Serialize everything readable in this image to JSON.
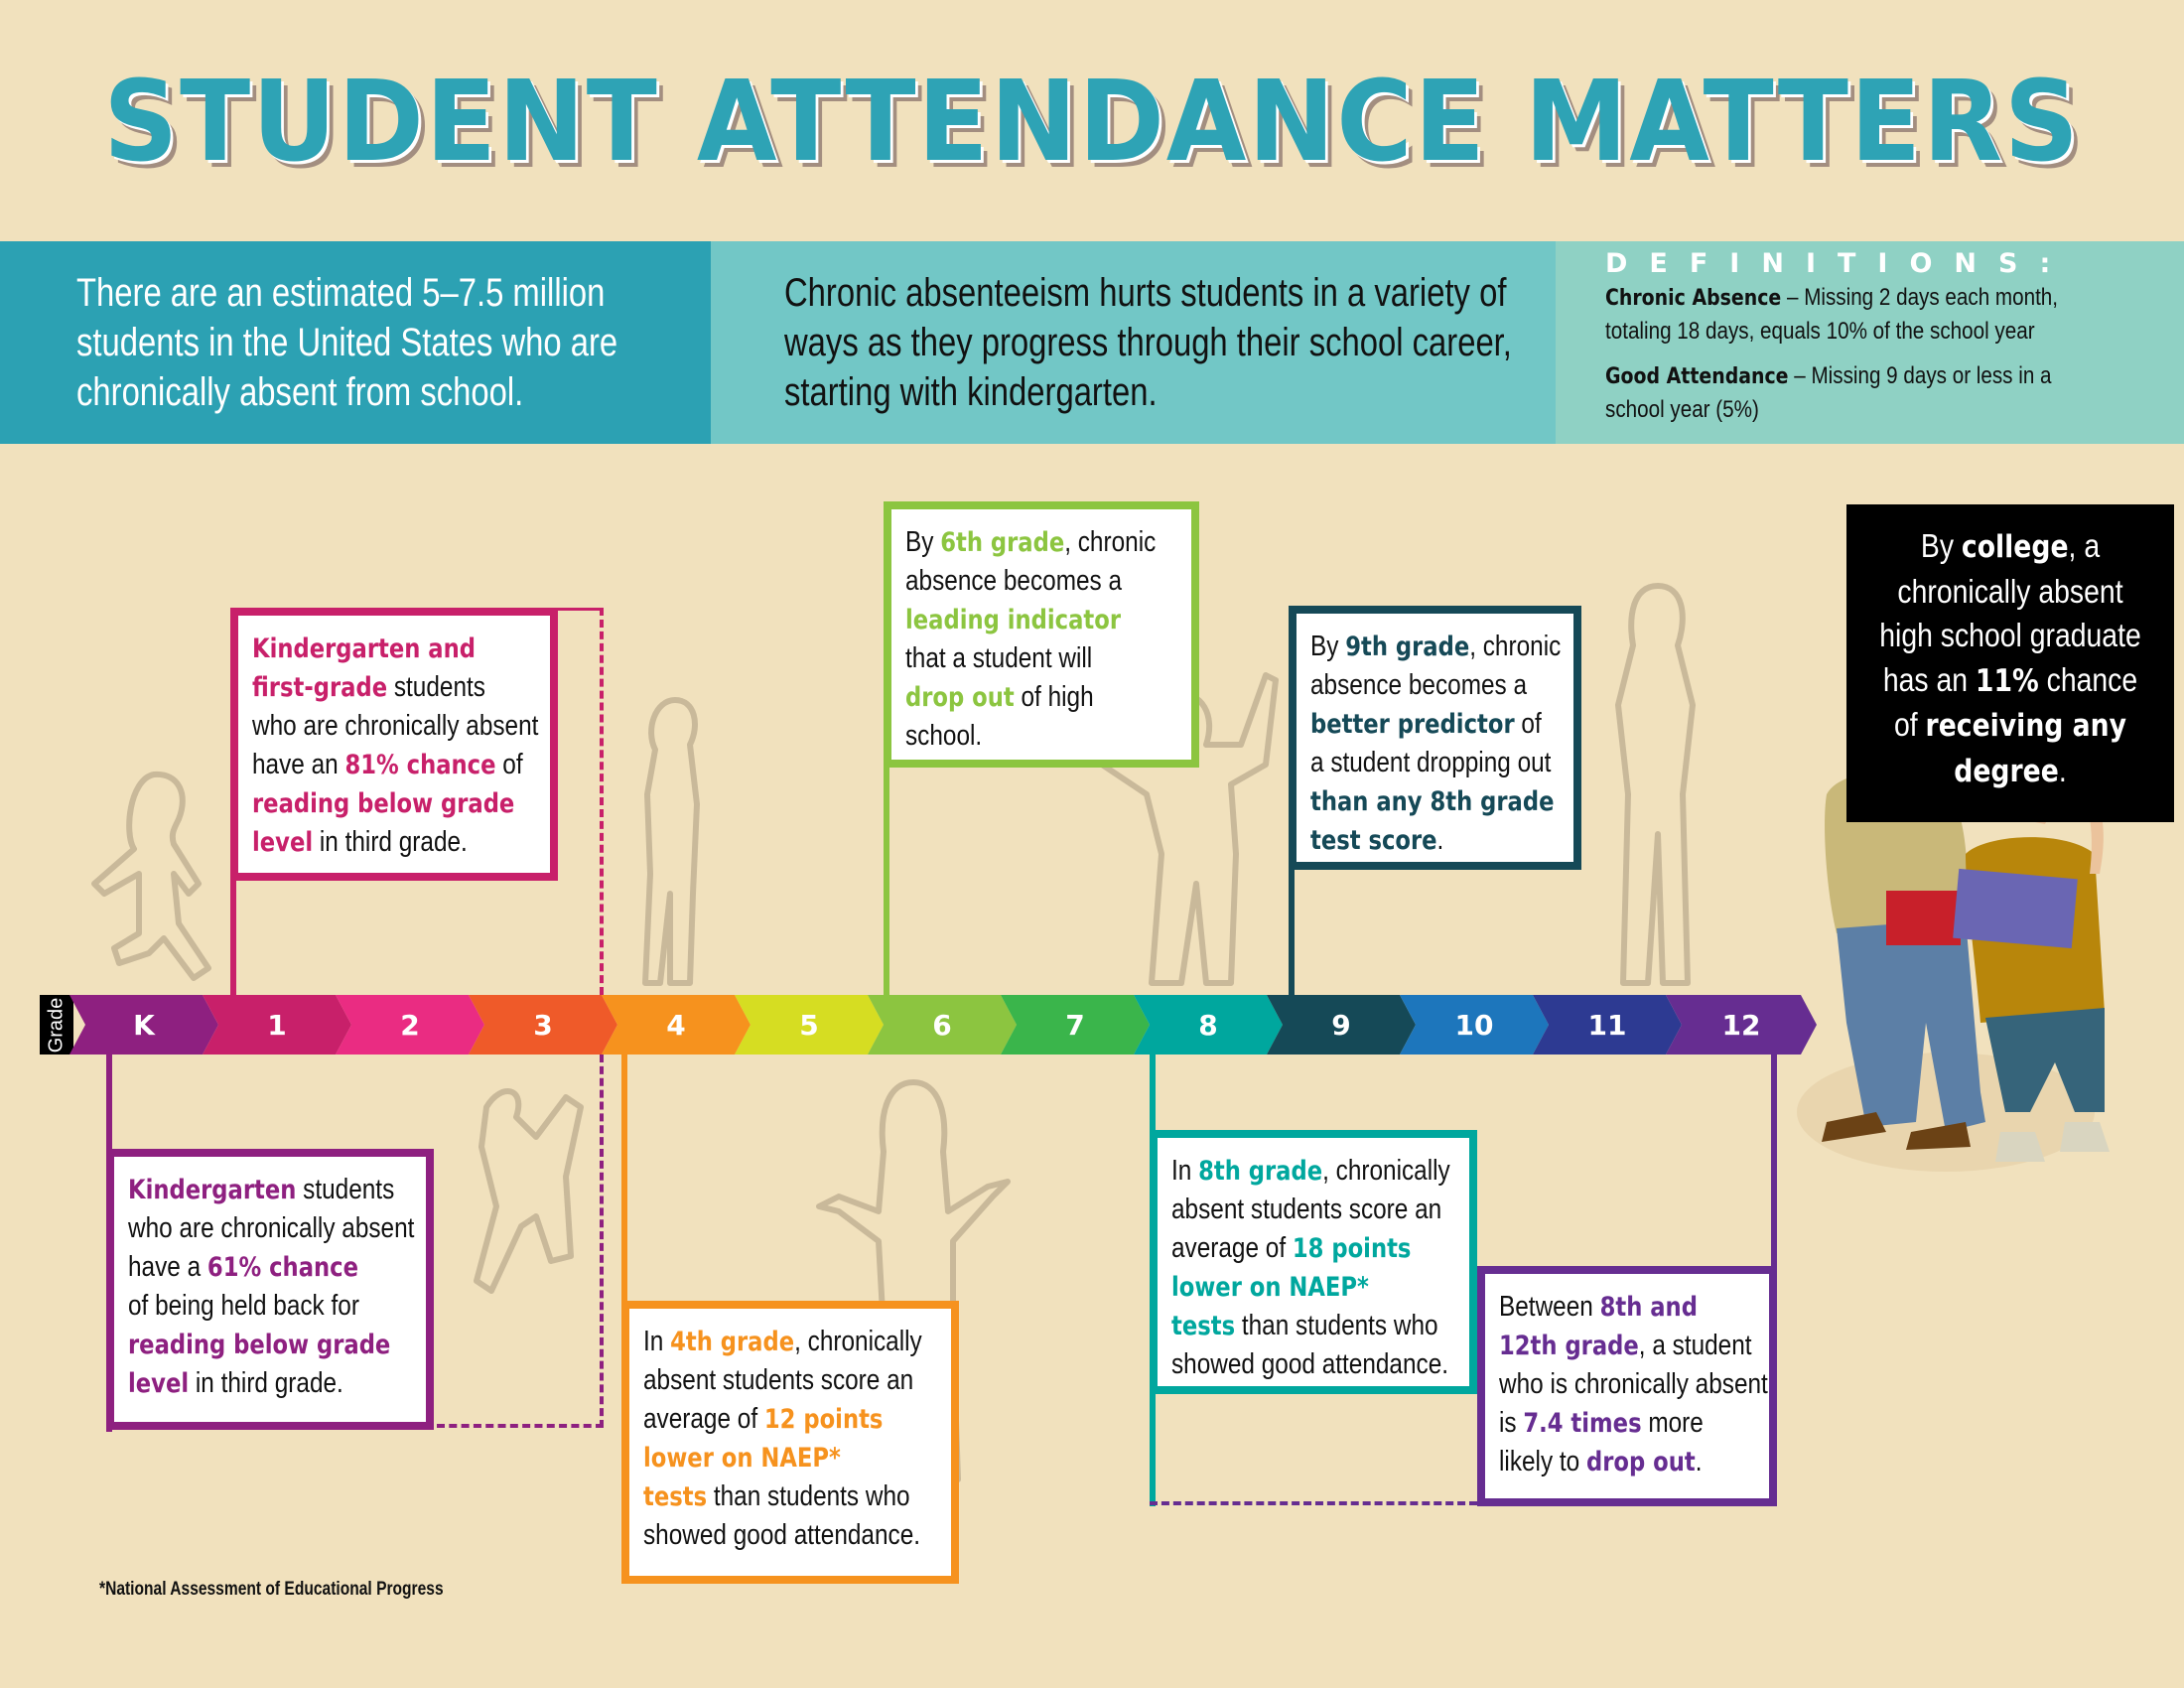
{
  "title": "STUDENT ATTENDANCE MATTERS",
  "intro": {
    "left_lines": [
      "There are an estimated 5–7.5 million",
      "students in the United States who are",
      "chronically absent from school."
    ],
    "middle_lines": [
      "Chronic absenteeism hurts students in a variety of",
      "ways as they progress through their school career,",
      "starting with kindergarten."
    ]
  },
  "definitions": {
    "heading": "DEFINITIONS:",
    "items": [
      {
        "term": "Chronic Absence",
        "line1": " – Missing 2 days each month,",
        "line2": "totaling 18 days, equals 10% of the school year"
      },
      {
        "term": "Good Attendance",
        "line1": " – Missing 9 days or less in a",
        "line2": "school year (5%)"
      }
    ]
  },
  "timeline": {
    "label": "Grade",
    "grades": [
      {
        "label": "K",
        "color": "#8e2080"
      },
      {
        "label": "1",
        "color": "#c8206a"
      },
      {
        "label": "2",
        "color": "#ea2c82"
      },
      {
        "label": "3",
        "color": "#ef5a29"
      },
      {
        "label": "4",
        "color": "#f6921e"
      },
      {
        "label": "5",
        "color": "#d6dd22"
      },
      {
        "label": "6",
        "color": "#8cc540"
      },
      {
        "label": "7",
        "color": "#3ab54b"
      },
      {
        "label": "8",
        "color": "#00a79e"
      },
      {
        "label": "9",
        "color": "#154957"
      },
      {
        "label": "10",
        "color": "#1d76bc"
      },
      {
        "label": "11",
        "color": "#2d3a92"
      },
      {
        "label": "12",
        "color": "#662d91"
      }
    ]
  },
  "colors": {
    "background": "#f1e1bd",
    "title": "#2ea3b5",
    "k1": "#c8206a",
    "k": "#8e2080",
    "g4": "#f6921e",
    "g6": "#8cc540",
    "g8": "#00a79e",
    "g9": "#154957",
    "g12": "#662d91"
  },
  "callouts": {
    "k1": {
      "lines": [
        [
          {
            "t": "Kindergarten and",
            "b": true
          }
        ],
        [
          {
            "t": "first-grade",
            "b": true
          },
          {
            "t": " students"
          }
        ],
        [
          {
            "t": "who are chronically absent"
          }
        ],
        [
          {
            "t": "have an "
          },
          {
            "t": "81% chance",
            "b": true
          },
          {
            "t": " of"
          }
        ],
        [
          {
            "t": "reading below grade",
            "b": true
          }
        ],
        [
          {
            "t": "level",
            "b": true
          },
          {
            "t": " in third grade."
          }
        ]
      ]
    },
    "k": {
      "lines": [
        [
          {
            "t": "Kindergarten",
            "b": true
          },
          {
            "t": " students"
          }
        ],
        [
          {
            "t": "who are chronically absent"
          }
        ],
        [
          {
            "t": "have a "
          },
          {
            "t": "61% chance",
            "b": true
          }
        ],
        [
          {
            "t": "of being held back for"
          }
        ],
        [
          {
            "t": "reading below grade",
            "b": true
          }
        ],
        [
          {
            "t": "level",
            "b": true
          },
          {
            "t": " in third grade."
          }
        ]
      ]
    },
    "g4": {
      "lines": [
        [
          {
            "t": "In "
          },
          {
            "t": "4th grade",
            "b": true
          },
          {
            "t": ", chronically"
          }
        ],
        [
          {
            "t": "absent students score an"
          }
        ],
        [
          {
            "t": "average of "
          },
          {
            "t": "12 points",
            "b": true
          }
        ],
        [
          {
            "t": "lower on NAEP*",
            "b": true
          }
        ],
        [
          {
            "t": "tests",
            "b": true
          },
          {
            "t": " than students who"
          }
        ],
        [
          {
            "t": "showed good attendance."
          }
        ]
      ]
    },
    "g6": {
      "lines": [
        [
          {
            "t": "By "
          },
          {
            "t": "6th grade",
            "b": true
          },
          {
            "t": ", chronic"
          }
        ],
        [
          {
            "t": "absence becomes a"
          }
        ],
        [
          {
            "t": "leading indicator",
            "b": true
          }
        ],
        [
          {
            "t": "that a student will"
          }
        ],
        [
          {
            "t": "drop out",
            "b": true
          },
          {
            "t": " of high"
          }
        ],
        [
          {
            "t": "school."
          }
        ]
      ]
    },
    "g8": {
      "lines": [
        [
          {
            "t": "In "
          },
          {
            "t": "8th grade",
            "b": true
          },
          {
            "t": ", chronically"
          }
        ],
        [
          {
            "t": "absent students score an"
          }
        ],
        [
          {
            "t": "average of "
          },
          {
            "t": "18 points",
            "b": true
          }
        ],
        [
          {
            "t": "lower on NAEP*",
            "b": true
          }
        ],
        [
          {
            "t": "tests",
            "b": true
          },
          {
            "t": " than students who"
          }
        ],
        [
          {
            "t": "showed good attendance."
          }
        ]
      ]
    },
    "g9": {
      "lines": [
        [
          {
            "t": "By "
          },
          {
            "t": "9th grade",
            "b": true
          },
          {
            "t": ", chronic"
          }
        ],
        [
          {
            "t": "absence becomes a"
          }
        ],
        [
          {
            "t": "better predictor",
            "b": true
          },
          {
            "t": " of"
          }
        ],
        [
          {
            "t": "a student dropping out"
          }
        ],
        [
          {
            "t": "than any 8th grade",
            "b": true
          }
        ],
        [
          {
            "t": "test score",
            "b": true
          },
          {
            "t": "."
          }
        ]
      ]
    },
    "g12": {
      "lines": [
        [
          {
            "t": "Between "
          },
          {
            "t": "8th and",
            "b": true
          }
        ],
        [
          {
            "t": "12th grade",
            "b": true
          },
          {
            "t": ", a student"
          }
        ],
        [
          {
            "t": "who is chronically absent"
          }
        ],
        [
          {
            "t": "is "
          },
          {
            "t": "7.4 times",
            "b": true
          },
          {
            "t": " more"
          }
        ],
        [
          {
            "t": "likely to "
          },
          {
            "t": "drop out",
            "b": true
          },
          {
            "t": "."
          }
        ]
      ]
    },
    "college": {
      "lines": [
        [
          {
            "t": "By "
          },
          {
            "t": "college",
            "b": true
          },
          {
            "t": ", a"
          }
        ],
        [
          {
            "t": "chronically absent"
          }
        ],
        [
          {
            "t": "high school graduate"
          }
        ],
        [
          {
            "t": "has an "
          },
          {
            "t": "11%",
            "b": true
          },
          {
            "t": " chance"
          }
        ],
        [
          {
            "t": "of "
          },
          {
            "t": "receiving any",
            "b": true
          }
        ],
        [
          {
            "t": "degree",
            "b": true
          },
          {
            "t": "."
          }
        ]
      ]
    }
  },
  "footnote": "*National Assessment of Educational Progress"
}
